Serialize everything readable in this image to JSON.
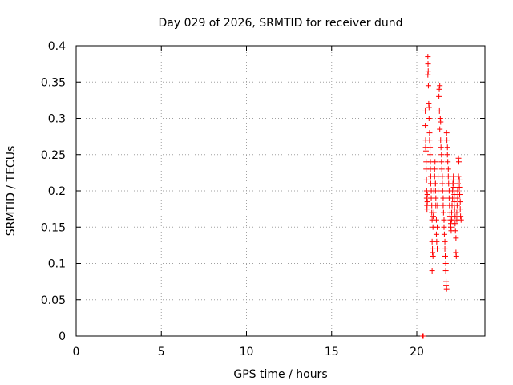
{
  "chart_data": {
    "type": "scatter",
    "title": "Day 029 of 2026, SRMTID for receiver dund",
    "xlabel": "GPS time / hours",
    "ylabel": "SRMTID / TECUs",
    "xlim": [
      0,
      24
    ],
    "ylim": [
      0,
      0.4
    ],
    "x_ticks": [
      0,
      5,
      10,
      15,
      20
    ],
    "x_tick_labels": [
      "0",
      "5",
      "10",
      "15",
      "20"
    ],
    "y_ticks": [
      0,
      0.05,
      0.1,
      0.15,
      0.2,
      0.25,
      0.3,
      0.35,
      0.4
    ],
    "y_tick_labels": [
      "0",
      "0.05",
      "0.1",
      "0.15",
      "0.2",
      "0.25",
      "0.3",
      "0.35",
      "0.4"
    ],
    "grid": true,
    "marker": "+",
    "color": "#ff0000",
    "series": [
      {
        "points": [
          [
            20.35,
            0.0
          ],
          [
            20.38,
            0.0
          ],
          [
            20.5,
            0.31
          ],
          [
            20.5,
            0.29
          ],
          [
            20.52,
            0.27
          ],
          [
            20.52,
            0.26
          ],
          [
            20.54,
            0.255
          ],
          [
            20.55,
            0.24
          ],
          [
            20.55,
            0.23
          ],
          [
            20.57,
            0.215
          ],
          [
            20.58,
            0.2
          ],
          [
            20.58,
            0.19
          ],
          [
            20.6,
            0.18
          ],
          [
            20.6,
            0.175
          ],
          [
            20.62,
            0.185
          ],
          [
            20.62,
            0.195
          ],
          [
            20.65,
            0.385
          ],
          [
            20.66,
            0.375
          ],
          [
            20.67,
            0.365
          ],
          [
            20.65,
            0.36
          ],
          [
            20.68,
            0.345
          ],
          [
            20.7,
            0.32
          ],
          [
            20.72,
            0.315
          ],
          [
            20.72,
            0.3
          ],
          [
            20.75,
            0.28
          ],
          [
            20.75,
            0.27
          ],
          [
            20.78,
            0.26
          ],
          [
            20.78,
            0.25
          ],
          [
            20.8,
            0.24
          ],
          [
            20.8,
            0.23
          ],
          [
            20.82,
            0.22
          ],
          [
            20.82,
            0.21
          ],
          [
            20.85,
            0.2
          ],
          [
            20.85,
            0.19
          ],
          [
            20.88,
            0.18
          ],
          [
            20.88,
            0.17
          ],
          [
            20.9,
            0.16
          ],
          [
            20.9,
            0.13
          ],
          [
            20.92,
            0.12
          ],
          [
            20.92,
            0.115
          ],
          [
            20.95,
            0.11
          ],
          [
            20.9,
            0.09
          ],
          [
            20.95,
            0.15
          ],
          [
            20.97,
            0.165
          ],
          [
            21.0,
            0.17
          ],
          [
            21.0,
            0.2
          ],
          [
            21.02,
            0.21
          ],
          [
            21.05,
            0.22
          ],
          [
            21.05,
            0.23
          ],
          [
            21.07,
            0.24
          ],
          [
            21.1,
            0.21
          ],
          [
            21.1,
            0.2
          ],
          [
            21.12,
            0.19
          ],
          [
            21.12,
            0.18
          ],
          [
            21.15,
            0.16
          ],
          [
            21.15,
            0.14
          ],
          [
            21.17,
            0.13
          ],
          [
            21.2,
            0.12
          ],
          [
            21.2,
            0.15
          ],
          [
            21.22,
            0.18
          ],
          [
            21.25,
            0.2
          ],
          [
            21.25,
            0.22
          ],
          [
            21.3,
            0.33
          ],
          [
            21.32,
            0.34
          ],
          [
            21.35,
            0.345
          ],
          [
            21.33,
            0.31
          ],
          [
            21.38,
            0.3
          ],
          [
            21.4,
            0.295
          ],
          [
            21.35,
            0.285
          ],
          [
            21.4,
            0.27
          ],
          [
            21.42,
            0.26
          ],
          [
            21.45,
            0.25
          ],
          [
            21.45,
            0.24
          ],
          [
            21.47,
            0.23
          ],
          [
            21.5,
            0.22
          ],
          [
            21.5,
            0.21
          ],
          [
            21.52,
            0.2
          ],
          [
            21.55,
            0.19
          ],
          [
            21.55,
            0.18
          ],
          [
            21.57,
            0.17
          ],
          [
            21.6,
            0.16
          ],
          [
            21.6,
            0.15
          ],
          [
            21.62,
            0.14
          ],
          [
            21.65,
            0.13
          ],
          [
            21.65,
            0.12
          ],
          [
            21.67,
            0.11
          ],
          [
            21.7,
            0.1
          ],
          [
            21.7,
            0.09
          ],
          [
            21.72,
            0.075
          ],
          [
            21.72,
            0.07
          ],
          [
            21.75,
            0.065
          ],
          [
            21.75,
            0.28
          ],
          [
            21.77,
            0.27
          ],
          [
            21.8,
            0.26
          ],
          [
            21.8,
            0.25
          ],
          [
            21.82,
            0.24
          ],
          [
            21.85,
            0.23
          ],
          [
            21.85,
            0.22
          ],
          [
            21.87,
            0.21
          ],
          [
            21.9,
            0.2
          ],
          [
            21.9,
            0.19
          ],
          [
            21.92,
            0.18
          ],
          [
            21.95,
            0.17
          ],
          [
            21.95,
            0.165
          ],
          [
            21.97,
            0.16
          ],
          [
            22.0,
            0.155
          ],
          [
            22.0,
            0.15
          ],
          [
            22.02,
            0.145
          ],
          [
            22.05,
            0.16
          ],
          [
            22.05,
            0.17
          ],
          [
            22.07,
            0.18
          ],
          [
            22.1,
            0.19
          ],
          [
            22.1,
            0.2
          ],
          [
            22.12,
            0.21
          ],
          [
            22.15,
            0.22
          ],
          [
            22.15,
            0.215
          ],
          [
            22.17,
            0.205
          ],
          [
            22.2,
            0.195
          ],
          [
            22.2,
            0.185
          ],
          [
            22.22,
            0.175
          ],
          [
            22.25,
            0.165
          ],
          [
            22.25,
            0.155
          ],
          [
            22.27,
            0.145
          ],
          [
            22.3,
            0.135
          ],
          [
            22.3,
            0.115
          ],
          [
            22.32,
            0.11
          ],
          [
            22.35,
            0.16
          ],
          [
            22.35,
            0.17
          ],
          [
            22.37,
            0.18
          ],
          [
            22.4,
            0.19
          ],
          [
            22.4,
            0.2
          ],
          [
            22.42,
            0.21
          ],
          [
            22.45,
            0.22
          ],
          [
            22.45,
            0.245
          ],
          [
            22.47,
            0.24
          ],
          [
            22.5,
            0.215
          ],
          [
            22.5,
            0.205
          ],
          [
            22.52,
            0.195
          ],
          [
            22.55,
            0.185
          ],
          [
            22.55,
            0.175
          ],
          [
            22.57,
            0.165
          ],
          [
            22.6,
            0.16
          ]
        ]
      }
    ]
  }
}
